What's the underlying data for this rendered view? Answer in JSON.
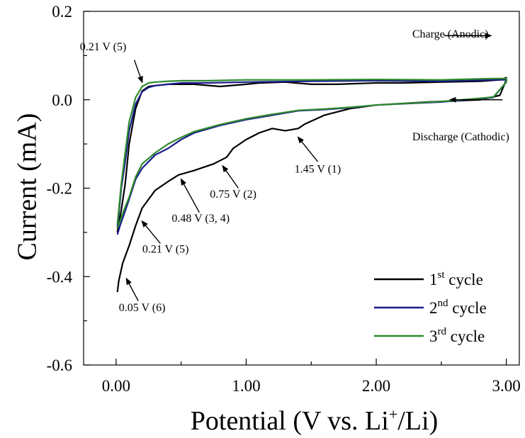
{
  "chart_data": {
    "type": "line",
    "xlabel": "Potential (V vs. Li+/Li)",
    "xlabel_parts": {
      "pre": "Potential (V vs. Li",
      "sup": "+",
      "post": "/Li)"
    },
    "ylabel": "Current (mA)",
    "xlim": [
      -0.25,
      3.1
    ],
    "ylim": [
      -0.6,
      0.2
    ],
    "x_ticks": [
      0,
      1,
      2,
      3
    ],
    "x_tick_labels": [
      "0.00",
      "1.00",
      "2.00",
      "3.00"
    ],
    "y_ticks": [
      -0.6,
      -0.4,
      -0.2,
      0.0,
      0.2
    ],
    "y_tick_labels": [
      "-0.6",
      "-0.4",
      "-0.2",
      "0.0",
      "0.2"
    ],
    "grid": false,
    "legend_position": "bottom-right",
    "series": [
      {
        "name": "1st cycle",
        "name_parts": {
          "num": "1",
          "sup": "st",
          "rest": " cycle"
        },
        "color": "#000000",
        "x": [
          0.01,
          0.02,
          0.05,
          0.1,
          0.15,
          0.2,
          0.3,
          0.4,
          0.48,
          0.6,
          0.7,
          0.75,
          0.85,
          0.9,
          1.0,
          1.1,
          1.2,
          1.3,
          1.4,
          1.45,
          1.6,
          1.8,
          2.0,
          2.4,
          2.8,
          2.95,
          3.0,
          3.0,
          2.95,
          2.8,
          2.5,
          2.2,
          2.0,
          1.7,
          1.5,
          1.3,
          1.1,
          1.0,
          0.8,
          0.6,
          0.5,
          0.4,
          0.3,
          0.25,
          0.2,
          0.15,
          0.1,
          0.07,
          0.04,
          0.02,
          0.01
        ],
        "y": [
          -0.435,
          -0.41,
          -0.37,
          -0.33,
          -0.285,
          -0.245,
          -0.205,
          -0.185,
          -0.17,
          -0.16,
          -0.15,
          -0.145,
          -0.13,
          -0.11,
          -0.09,
          -0.075,
          -0.065,
          -0.07,
          -0.065,
          -0.055,
          -0.035,
          -0.02,
          -0.012,
          -0.005,
          0.0,
          0.01,
          0.045,
          0.05,
          0.045,
          0.042,
          0.04,
          0.038,
          0.038,
          0.035,
          0.035,
          0.04,
          0.038,
          0.035,
          0.03,
          0.035,
          0.035,
          0.035,
          0.032,
          0.03,
          0.02,
          -0.02,
          -0.1,
          -0.19,
          -0.25,
          -0.28,
          -0.3
        ]
      },
      {
        "name": "2nd cycle",
        "name_parts": {
          "num": "2",
          "sup": "nd",
          "rest": " cycle"
        },
        "color": "#1a1a8c",
        "x": [
          0.01,
          0.03,
          0.06,
          0.1,
          0.15,
          0.2,
          0.3,
          0.4,
          0.5,
          0.6,
          0.8,
          1.0,
          1.2,
          1.4,
          1.6,
          1.8,
          2.0,
          2.5,
          2.9,
          3.0,
          3.0,
          2.9,
          2.5,
          2.0,
          1.5,
          1.0,
          0.7,
          0.5,
          0.4,
          0.3,
          0.25,
          0.2,
          0.15,
          0.1,
          0.07,
          0.04,
          0.02,
          0.01
        ],
        "y": [
          -0.305,
          -0.285,
          -0.26,
          -0.225,
          -0.18,
          -0.155,
          -0.125,
          -0.11,
          -0.09,
          -0.075,
          -0.058,
          -0.045,
          -0.035,
          -0.025,
          -0.022,
          -0.018,
          -0.012,
          -0.005,
          0.005,
          0.04,
          0.045,
          0.045,
          0.042,
          0.043,
          0.042,
          0.04,
          0.038,
          0.038,
          0.035,
          0.032,
          0.028,
          0.018,
          -0.01,
          -0.07,
          -0.14,
          -0.2,
          -0.26,
          -0.29
        ]
      },
      {
        "name": "3rd cycle",
        "name_parts": {
          "num": "3",
          "sup": "rd",
          "rest": " cycle"
        },
        "color": "#2e8b2e",
        "x": [
          0.01,
          0.03,
          0.06,
          0.1,
          0.15,
          0.2,
          0.3,
          0.4,
          0.5,
          0.6,
          0.8,
          1.0,
          1.2,
          1.4,
          1.6,
          1.8,
          2.0,
          2.5,
          2.9,
          3.0,
          3.0,
          2.9,
          2.5,
          2.0,
          1.5,
          1.0,
          0.7,
          0.5,
          0.4,
          0.3,
          0.25,
          0.2,
          0.15,
          0.1,
          0.07,
          0.04,
          0.02,
          0.01
        ],
        "y": [
          -0.29,
          -0.275,
          -0.25,
          -0.22,
          -0.175,
          -0.145,
          -0.12,
          -0.1,
          -0.085,
          -0.072,
          -0.056,
          -0.043,
          -0.033,
          -0.024,
          -0.021,
          -0.017,
          -0.012,
          -0.004,
          0.006,
          0.04,
          0.048,
          0.048,
          0.045,
          0.046,
          0.045,
          0.045,
          0.043,
          0.043,
          0.042,
          0.04,
          0.038,
          0.03,
          0.005,
          -0.05,
          -0.12,
          -0.19,
          -0.25,
          -0.28
        ]
      }
    ],
    "annotations": [
      {
        "text": "0.21 V (5)",
        "x": -0.1,
        "y": 0.112,
        "arrow_from": [
          0.14,
          0.09
        ],
        "arrow_to": [
          0.2,
          0.04
        ]
      },
      {
        "text": "1.45 V (1)",
        "x": 1.55,
        "y": -0.165,
        "arrow_from": [
          1.55,
          -0.14
        ],
        "arrow_to": [
          1.4,
          -0.085
        ]
      },
      {
        "text": "0.75 V (2)",
        "x": 0.9,
        "y": -0.222,
        "arrow_from": [
          0.94,
          -0.2
        ],
        "arrow_to": [
          0.82,
          -0.15
        ]
      },
      {
        "text": "0.48 V (3, 4)",
        "x": 0.65,
        "y": -0.276,
        "arrow_from": [
          0.64,
          -0.255
        ],
        "arrow_to": [
          0.5,
          -0.18
        ]
      },
      {
        "text": "0.21 V (5)",
        "x": 0.38,
        "y": -0.346,
        "arrow_from": [
          0.34,
          -0.325
        ],
        "arrow_to": [
          0.2,
          -0.275
        ]
      },
      {
        "text": "0.05 V (6)",
        "x": 0.2,
        "y": -0.478,
        "arrow_from": [
          0.17,
          -0.455
        ],
        "arrow_to": [
          0.08,
          -0.405
        ]
      }
    ],
    "direction_labels": [
      {
        "text": "Charge (Anodic)",
        "x": 2.57,
        "y": 0.141,
        "arrow": "right",
        "arrow_x": [
          2.52,
          2.88
        ],
        "arrow_y": 0.145
      },
      {
        "text": "Discharge (Cathodic)",
        "x": 2.65,
        "y": -0.092,
        "arrow": "left",
        "arrow_x": [
          2.97,
          2.57
        ],
        "arrow_y": 0.0
      }
    ]
  }
}
